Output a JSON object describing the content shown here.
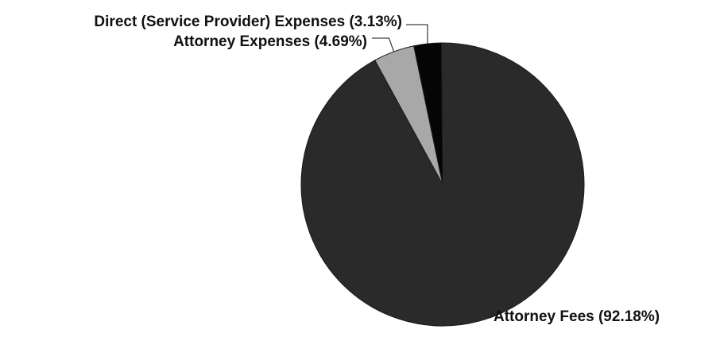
{
  "chart_data": {
    "type": "pie",
    "slices": [
      {
        "label": "Attorney Fees (92.18%)",
        "value": 92.18,
        "color": "#2a2a2a"
      },
      {
        "label": "Attorney Expenses (4.69%)",
        "value": 4.69,
        "color": "#a8a8a8"
      },
      {
        "label": "Direct (Service Provider) Expenses (3.13%)",
        "value": 3.13,
        "color": "#050505"
      }
    ],
    "legend": "none"
  }
}
